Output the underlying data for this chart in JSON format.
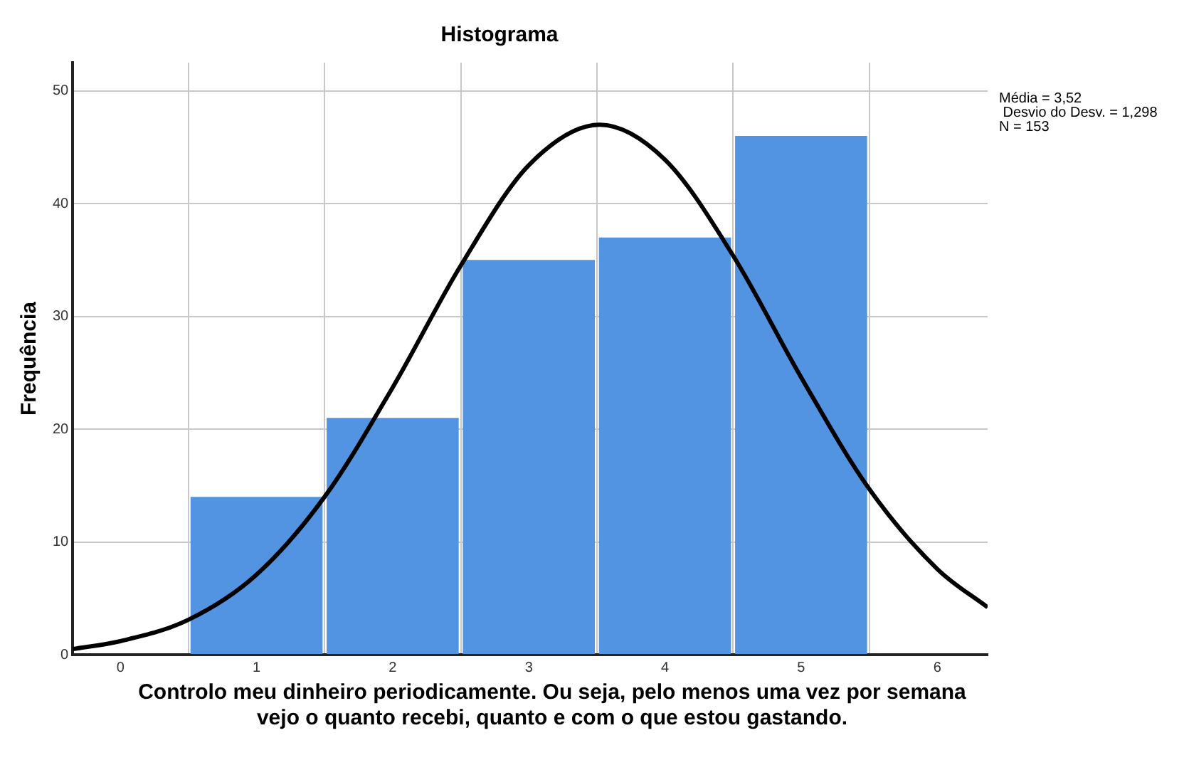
{
  "chart_data": {
    "type": "histogram",
    "title": "Histograma",
    "xlabel": "Controlo meu dinheiro periodicamente. Ou seja, pelo menos uma vez por semana vejo o quanto recebi, quanto e com o que estou gastando.",
    "ylabel": "Frequência",
    "bins": [
      0.5,
      1.5,
      2.5,
      3.5,
      4.5,
      5.5
    ],
    "values": [
      14,
      21,
      35,
      37,
      46
    ],
    "color": "#5294e2",
    "series": [
      {
        "type": "line",
        "color": "#000000",
        "x": [
          -0.35,
          0,
          0.5,
          1,
          1.5,
          2,
          2.5,
          3,
          3.52,
          4,
          4.5,
          5,
          5.5,
          6,
          6.37
        ],
        "values": [
          0.5,
          1.2,
          3.1,
          7.1,
          14,
          23.7,
          34.5,
          43.4,
          47,
          43.9,
          35.4,
          24.6,
          14.7,
          7.6,
          4.2
        ]
      }
    ],
    "xlim": [
      -0.35,
      6.37
    ],
    "xticks": [
      0,
      1,
      2,
      3,
      4,
      5,
      6
    ],
    "ylim": [
      0,
      52.5
    ],
    "yticks": [
      0,
      10,
      20,
      30,
      40,
      50
    ],
    "grid": true,
    "legend": false,
    "marker": "none",
    "line_style": "solid",
    "annotations": [
      "Média = 3,52",
      " Desvio do Desv. = 1,298",
      "N = 153"
    ]
  }
}
